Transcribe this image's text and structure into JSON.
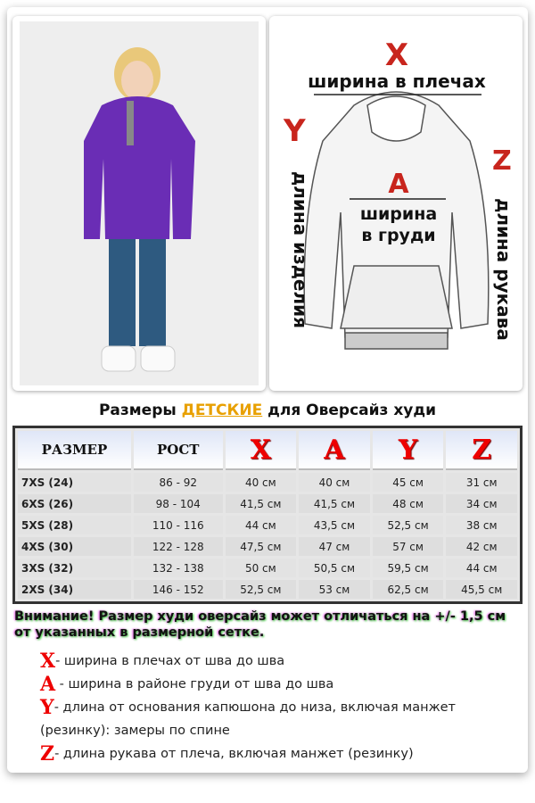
{
  "title": {
    "prefix": "Размеры",
    "highlight": "ДЕТСКИЕ",
    "suffix": "для Оверсайз худи"
  },
  "diagram": {
    "x_letter": "X",
    "x_label": "ширина в плечах",
    "y_letter": "Y",
    "y_label": "длина изделия",
    "z_letter": "Z",
    "z_label": "длина рукава",
    "a_letter": "A",
    "a_label_1": "ширина",
    "a_label_2": "в груди"
  },
  "table": {
    "headers": [
      "РАЗМЕР",
      "РОСТ",
      "X",
      "A",
      "Y",
      "Z"
    ],
    "rows": [
      [
        "7XS (24)",
        "86 - 92",
        "40 см",
        "40 см",
        "45 см",
        "31 см"
      ],
      [
        "6XS (26)",
        "98 - 104",
        "41,5 см",
        "41,5 см",
        "48 см",
        "34 см"
      ],
      [
        "5XS (28)",
        "110 - 116",
        "44 см",
        "43,5 см",
        "52,5 см",
        "38 см"
      ],
      [
        "4XS (30)",
        "122 - 128",
        "47,5 см",
        "47 см",
        "57 см",
        "42 см"
      ],
      [
        "3XS (32)",
        "132 - 138",
        "50 см",
        "50,5 см",
        "59,5 см",
        "44 см"
      ],
      [
        "2XS (34)",
        "146 - 152",
        "52,5 см",
        "53 см",
        "62,5 см",
        "45,5 см"
      ]
    ]
  },
  "warning": "Внимание! Размер худи оверсайз может отличаться на +/- 1,5 см от указанных в размерной сетке.",
  "legend": [
    {
      "letter": "X",
      "text": "- ширина в плечах от шва до шва"
    },
    {
      "letter": "A",
      "text": " - ширина в районе груди от шва до шва"
    },
    {
      "letter": "Y",
      "text": "- длина от основания капюшона до низа, включая манжет (резинку): замеры по спине"
    },
    {
      "letter": "Z",
      "text": "- длина рукава от плеча, включая манжет (резинку)"
    }
  ],
  "colors": {
    "accent": "#e8a000",
    "letters": "#e00000",
    "hoodie": "#6a2db5"
  }
}
